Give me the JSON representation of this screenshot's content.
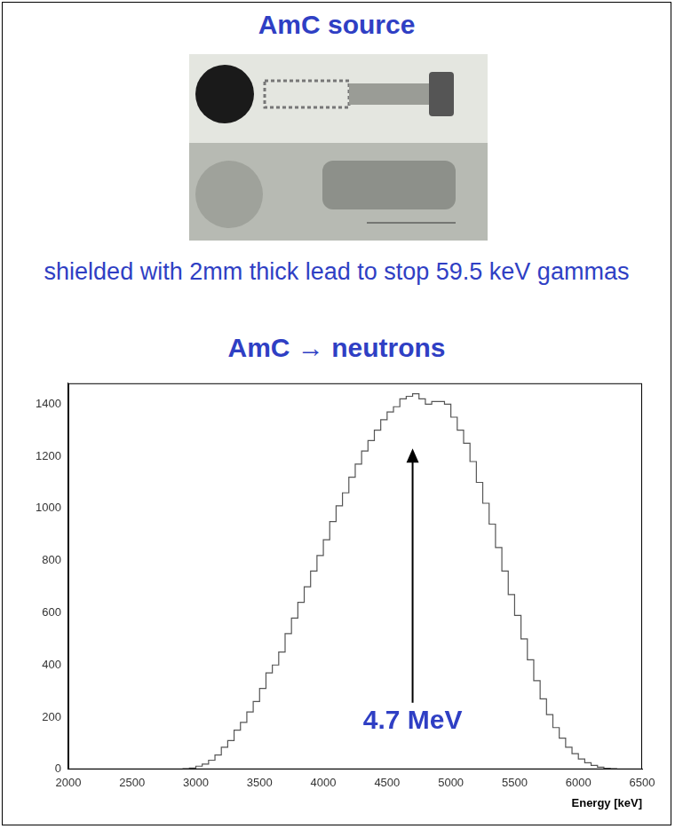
{
  "panel": {
    "title": "AmC source",
    "note": "shielded with 2mm thick lead to stop 59.5 keV gammas",
    "chart_heading": "AmC → neutrons"
  },
  "chart_data": {
    "type": "histogram",
    "x_label": "Energy [keV]",
    "bins": [
      2900,
      2950,
      3000,
      3050,
      3100,
      3150,
      3200,
      3250,
      3300,
      3350,
      3400,
      3450,
      3500,
      3550,
      3600,
      3650,
      3700,
      3750,
      3800,
      3850,
      3900,
      3950,
      4000,
      4050,
      4100,
      4150,
      4200,
      4250,
      4300,
      4350,
      4400,
      4450,
      4500,
      4550,
      4600,
      4650,
      4700,
      4750,
      4800,
      4850,
      4900,
      4950,
      5000,
      5050,
      5100,
      5150,
      5200,
      5250,
      5300,
      5350,
      5400,
      5450,
      5500,
      5550,
      5600,
      5650,
      5700,
      5750,
      5800,
      5850,
      5900,
      5950,
      6000,
      6050,
      6100,
      6150,
      6200,
      6250,
      6300
    ],
    "values": [
      2,
      5,
      12,
      20,
      35,
      55,
      85,
      110,
      150,
      180,
      220,
      260,
      310,
      370,
      400,
      450,
      520,
      580,
      640,
      700,
      760,
      820,
      880,
      950,
      1010,
      1060,
      1120,
      1170,
      1220,
      1260,
      1300,
      1340,
      1370,
      1390,
      1420,
      1430,
      1440,
      1420,
      1400,
      1410,
      1410,
      1400,
      1350,
      1300,
      1250,
      1180,
      1100,
      1020,
      940,
      850,
      760,
      670,
      590,
      500,
      420,
      340,
      270,
      210,
      160,
      120,
      85,
      60,
      40,
      25,
      15,
      8,
      4,
      2
    ],
    "color": "#555555",
    "xlim": [
      2000,
      6500
    ],
    "xticks": [
      2000,
      2500,
      3000,
      3500,
      4000,
      4500,
      5000,
      5500,
      6000,
      6500
    ],
    "ylim": [
      0,
      1480
    ],
    "yticks": [
      0,
      200,
      400,
      600,
      800,
      1000,
      1200,
      1400
    ],
    "grid": false,
    "annotations": [
      {
        "text": "4.7 MeV",
        "x": 4700,
        "y": 1230
      }
    ]
  }
}
